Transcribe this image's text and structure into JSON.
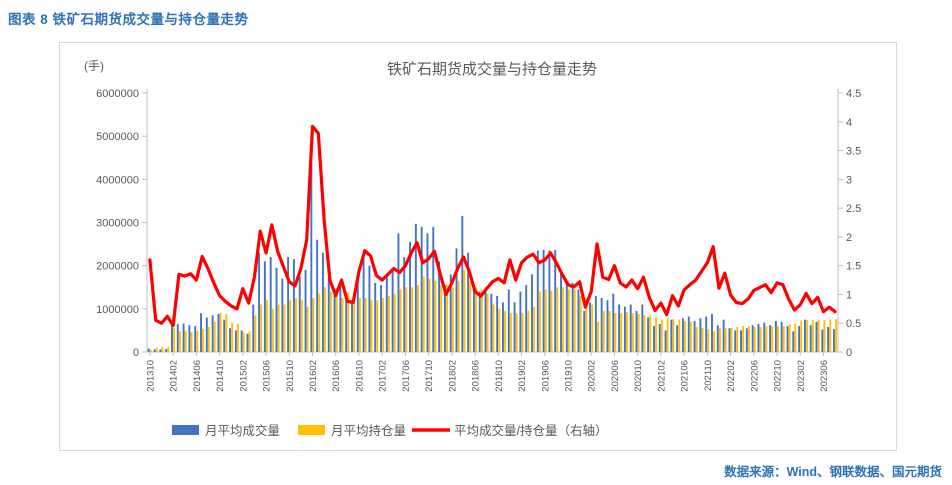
{
  "figure": {
    "caption": "图表 8 铁矿石期货成交量与持仓量走势",
    "source": "数据来源：Wind、钢联数据、国元期货"
  },
  "chart_data": {
    "type": "bar+line combo",
    "title": "铁矿石期货成交量与持仓量走势",
    "unit_label": "(手)",
    "grid": false,
    "legend_position": "bottom",
    "colors": {
      "volume_bar": "#4472C4",
      "open_interest_bar": "#FFC000",
      "ratio_line": "#FF0000",
      "axis": "#BFBFBF",
      "text": "#595959"
    },
    "left_axis": {
      "min": 0,
      "max": 6000000,
      "step": 1000000,
      "tick_labels": [
        "0",
        "1000000",
        "2000000",
        "3000000",
        "4000000",
        "5000000",
        "6000000"
      ]
    },
    "right_axis": {
      "min": 0,
      "max": 4.5,
      "step": 0.5,
      "tick_labels": [
        "0",
        "0.5",
        "1",
        "1.5",
        "2",
        "2.5",
        "3",
        "3.5",
        "4",
        "4.5"
      ]
    },
    "x_tick_labels": [
      "201310",
      "201402",
      "201406",
      "201410",
      "201502",
      "201506",
      "201510",
      "201602",
      "201606",
      "201610",
      "201702",
      "201706",
      "201710",
      "201802",
      "201806",
      "201810",
      "201902",
      "201906",
      "201910",
      "202002",
      "202006",
      "202010",
      "202102",
      "202106",
      "202110",
      "202202",
      "202206",
      "202210",
      "202302",
      "202306"
    ],
    "categories": [
      "201310",
      "201311",
      "201312",
      "201401",
      "201402",
      "201403",
      "201404",
      "201405",
      "201406",
      "201407",
      "201408",
      "201409",
      "201410",
      "201411",
      "201412",
      "201501",
      "201502",
      "201503",
      "201504",
      "201505",
      "201506",
      "201507",
      "201508",
      "201509",
      "201510",
      "201511",
      "201512",
      "201601",
      "201602",
      "201603",
      "201604",
      "201605",
      "201606",
      "201607",
      "201608",
      "201609",
      "201610",
      "201611",
      "201612",
      "201701",
      "201702",
      "201703",
      "201704",
      "201705",
      "201706",
      "201707",
      "201708",
      "201709",
      "201710",
      "201711",
      "201712",
      "201801",
      "201802",
      "201803",
      "201804",
      "201805",
      "201806",
      "201807",
      "201808",
      "201809",
      "201810",
      "201811",
      "201812",
      "201901",
      "201902",
      "201903",
      "201904",
      "201905",
      "201906",
      "201907",
      "201908",
      "201909",
      "201910",
      "201911",
      "201912",
      "202001",
      "202002",
      "202003",
      "202004",
      "202005",
      "202006",
      "202007",
      "202008",
      "202009",
      "202010",
      "202011",
      "202012",
      "202101",
      "202102",
      "202103",
      "202104",
      "202105",
      "202106",
      "202107",
      "202108",
      "202109",
      "202110",
      "202111",
      "202112",
      "202201",
      "202202",
      "202203",
      "202204",
      "202205",
      "202206",
      "202207",
      "202208",
      "202209",
      "202210",
      "202211",
      "202212",
      "202301",
      "202302",
      "202303",
      "202304",
      "202305",
      "202306",
      "202307",
      "202308"
    ],
    "series": [
      {
        "name": "月平均成交量",
        "type": "bar",
        "axis": "left",
        "color": "#4472C4",
        "values": [
          80000,
          60000,
          60000,
          70000,
          620000,
          650000,
          660000,
          620000,
          600000,
          900000,
          800000,
          850000,
          880000,
          750000,
          550000,
          500000,
          500000,
          420000,
          1100000,
          2300000,
          2100000,
          2200000,
          1950000,
          1700000,
          2200000,
          2150000,
          1750000,
          1900000,
          4350000,
          2600000,
          2300000,
          1700000,
          1450000,
          1550000,
          1200000,
          1200000,
          1750000,
          2200000,
          2000000,
          1600000,
          1550000,
          1750000,
          1950000,
          2750000,
          2200000,
          2550000,
          2970000,
          2900000,
          2750000,
          2900000,
          2100000,
          1550000,
          1800000,
          2400000,
          3150000,
          2300000,
          1550000,
          1400000,
          1500000,
          1350000,
          1300000,
          1150000,
          1450000,
          1150000,
          1400000,
          1550000,
          1800000,
          2350000,
          2370000,
          2350000,
          2360000,
          1900000,
          1630000,
          1600000,
          1450000,
          950000,
          1150000,
          1300000,
          1250000,
          1200000,
          1350000,
          1100000,
          1050000,
          1100000,
          950000,
          1100000,
          800000,
          600000,
          650000,
          500000,
          750000,
          620000,
          780000,
          820000,
          720000,
          780000,
          820000,
          880000,
          620000,
          750000,
          550000,
          500000,
          500000,
          550000,
          620000,
          650000,
          680000,
          620000,
          720000,
          700000,
          600000,
          480000,
          600000,
          750000,
          620000,
          700000,
          520000,
          580000,
          530000
        ]
      },
      {
        "name": "月平均持仓量",
        "type": "bar",
        "axis": "left",
        "color": "#FFC000",
        "values": [
          50000,
          100000,
          110000,
          120000,
          550000,
          480000,
          500000,
          460000,
          490000,
          540000,
          580000,
          700000,
          900000,
          880000,
          680000,
          650000,
          450000,
          480000,
          850000,
          1100000,
          1200000,
          1000000,
          1100000,
          1100000,
          1200000,
          1250000,
          1200000,
          1050000,
          1250000,
          1350000,
          1500000,
          1400000,
          1480000,
          1250000,
          1380000,
          1400000,
          1250000,
          1250000,
          1200000,
          1200000,
          1250000,
          1300000,
          1350000,
          1450000,
          1500000,
          1500000,
          1550000,
          1750000,
          1700000,
          1650000,
          1550000,
          1550000,
          1500000,
          1650000,
          1900000,
          1650000,
          1500000,
          1450000,
          1350000,
          1100000,
          1000000,
          950000,
          900000,
          900000,
          900000,
          950000,
          1050000,
          1400000,
          1450000,
          1420000,
          1500000,
          1500000,
          1450000,
          1450000,
          1300000,
          1250000,
          1100000,
          700000,
          950000,
          950000,
          900000,
          900000,
          920000,
          900000,
          880000,
          850000,
          850000,
          800000,
          750000,
          780000,
          760000,
          750000,
          720000,
          700000,
          580000,
          560000,
          530000,
          480000,
          550000,
          550000,
          560000,
          580000,
          600000,
          600000,
          580000,
          580000,
          600000,
          600000,
          600000,
          600000,
          650000,
          660000,
          730000,
          740000,
          740000,
          740000,
          740000,
          750000,
          760000
        ]
      },
      {
        "name": "平均成交量/持仓量（右轴）",
        "type": "line",
        "axis": "right",
        "color": "#FF0000",
        "values": [
          1.6,
          0.55,
          0.5,
          0.62,
          0.46,
          1.35,
          1.32,
          1.36,
          1.25,
          1.66,
          1.45,
          1.2,
          0.98,
          0.88,
          0.8,
          0.75,
          1.1,
          0.85,
          1.3,
          2.1,
          1.72,
          2.21,
          1.75,
          1.48,
          1.22,
          1.15,
          1.45,
          1.95,
          3.92,
          3.8,
          2.3,
          1.25,
          0.98,
          1.25,
          0.88,
          0.86,
          1.4,
          1.76,
          1.67,
          1.33,
          1.25,
          1.35,
          1.45,
          1.38,
          1.5,
          1.72,
          1.9,
          1.55,
          1.62,
          1.75,
          1.35,
          1.0,
          1.2,
          1.45,
          1.65,
          1.4,
          1.05,
          0.97,
          1.1,
          1.22,
          1.28,
          1.2,
          1.6,
          1.25,
          1.55,
          1.65,
          1.7,
          1.55,
          1.6,
          1.72,
          1.55,
          1.35,
          1.17,
          1.13,
          1.22,
          0.78,
          1.05,
          1.88,
          1.3,
          1.26,
          1.5,
          1.2,
          1.13,
          1.25,
          1.1,
          1.3,
          0.95,
          0.72,
          0.85,
          0.65,
          0.98,
          0.8,
          1.08,
          1.17,
          1.25,
          1.4,
          1.55,
          1.83,
          1.11,
          1.37,
          0.99,
          0.86,
          0.84,
          0.92,
          1.07,
          1.12,
          1.17,
          1.03,
          1.2,
          1.17,
          0.92,
          0.73,
          0.82,
          1.02,
          0.84,
          0.95,
          0.7,
          0.78,
          0.7
        ]
      }
    ]
  }
}
